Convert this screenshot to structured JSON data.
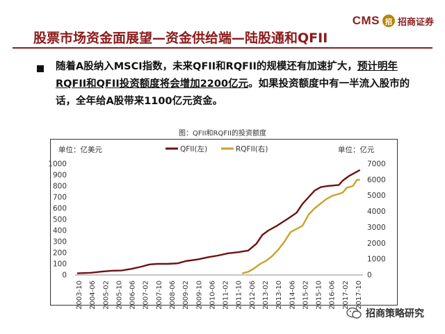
{
  "header": {
    "title": "股票市场资金面展望—资金供给端—陆股通和QFII",
    "logo_text": "CMS",
    "logo_badge": "招",
    "logo_cn": "招商证券"
  },
  "body": {
    "para_part1": "随着A股纳入MSCI指数，未来QFII和RQFII的规模还有加速扩大，",
    "para_part2": "预计明年RQFII和QFII投资额度将会增加2200亿元",
    "para_part3": "。如果投资额度中有一半流入股市的话，全年给A股带来1100亿元资金。"
  },
  "chart_data": {
    "type": "line",
    "title": "图：QFII和RQFII的投资额度",
    "left_unit": "单位：亿美元",
    "right_unit": "单位：亿元",
    "left_axis": {
      "min": 0,
      "max": 1000,
      "ticks": [
        "0",
        "100",
        "200",
        "300",
        "400",
        "500",
        "600",
        "700",
        "800",
        "900",
        "1000"
      ]
    },
    "right_axis": {
      "min": 0,
      "max": 7000,
      "ticks": [
        "0",
        "1000",
        "2000",
        "3000",
        "4000",
        "5000",
        "6000",
        "7000"
      ]
    },
    "x_labels": [
      "2003-10",
      "2004-06",
      "2005-02",
      "2005-10",
      "2006-06",
      "2007-02",
      "2007-10",
      "2008-06",
      "2009-02",
      "2009-10",
      "2010-06",
      "2011-02",
      "2011-10",
      "2012-06",
      "2013-02",
      "2013-10",
      "2014-06",
      "2015-02",
      "2015-10",
      "2016-06",
      "2017-02",
      "2017-10"
    ],
    "series": [
      {
        "name": "QFII(左)",
        "axis": "left",
        "color": "#6e1111",
        "points": [
          [
            2003.8,
            15
          ],
          [
            2004.5,
            20
          ],
          [
            2005.0,
            30
          ],
          [
            2005.5,
            38
          ],
          [
            2006.0,
            40
          ],
          [
            2006.5,
            55
          ],
          [
            2007.0,
            75
          ],
          [
            2007.4,
            95
          ],
          [
            2007.8,
            100
          ],
          [
            2008.3,
            100
          ],
          [
            2008.8,
            105
          ],
          [
            2009.2,
            125
          ],
          [
            2009.8,
            140
          ],
          [
            2010.3,
            160
          ],
          [
            2010.8,
            175
          ],
          [
            2011.3,
            195
          ],
          [
            2011.8,
            205
          ],
          [
            2012.3,
            220
          ],
          [
            2012.7,
            280
          ],
          [
            2013.0,
            360
          ],
          [
            2013.3,
            400
          ],
          [
            2013.7,
            440
          ],
          [
            2014.0,
            475
          ],
          [
            2014.3,
            510
          ],
          [
            2014.7,
            560
          ],
          [
            2015.0,
            640
          ],
          [
            2015.3,
            700
          ],
          [
            2015.6,
            760
          ],
          [
            2015.9,
            790
          ],
          [
            2016.2,
            800
          ],
          [
            2016.5,
            805
          ],
          [
            2016.8,
            810
          ],
          [
            2017.0,
            850
          ],
          [
            2017.3,
            890
          ],
          [
            2017.6,
            920
          ],
          [
            2017.85,
            945
          ]
        ]
      },
      {
        "name": "RQFII(右)",
        "axis": "right",
        "color": "#c9a227",
        "points": [
          [
            2012.0,
            100
          ],
          [
            2012.3,
            200
          ],
          [
            2012.6,
            420
          ],
          [
            2012.9,
            700
          ],
          [
            2013.2,
            900
          ],
          [
            2013.5,
            1200
          ],
          [
            2013.8,
            1600
          ],
          [
            2014.1,
            2100
          ],
          [
            2014.4,
            2700
          ],
          [
            2014.7,
            2900
          ],
          [
            2015.0,
            3100
          ],
          [
            2015.3,
            3800
          ],
          [
            2015.6,
            4200
          ],
          [
            2015.9,
            4500
          ],
          [
            2016.2,
            4800
          ],
          [
            2016.5,
            5000
          ],
          [
            2016.8,
            5100
          ],
          [
            2017.0,
            5200
          ],
          [
            2017.2,
            5500
          ],
          [
            2017.5,
            5600
          ],
          [
            2017.7,
            6000
          ],
          [
            2017.85,
            6000
          ]
        ]
      }
    ]
  },
  "footer": {
    "wechat_label": "招商策略研究"
  },
  "colors": {
    "accent": "#8b1a1a",
    "qfii": "#6e1111",
    "rqfii": "#c9a227"
  }
}
